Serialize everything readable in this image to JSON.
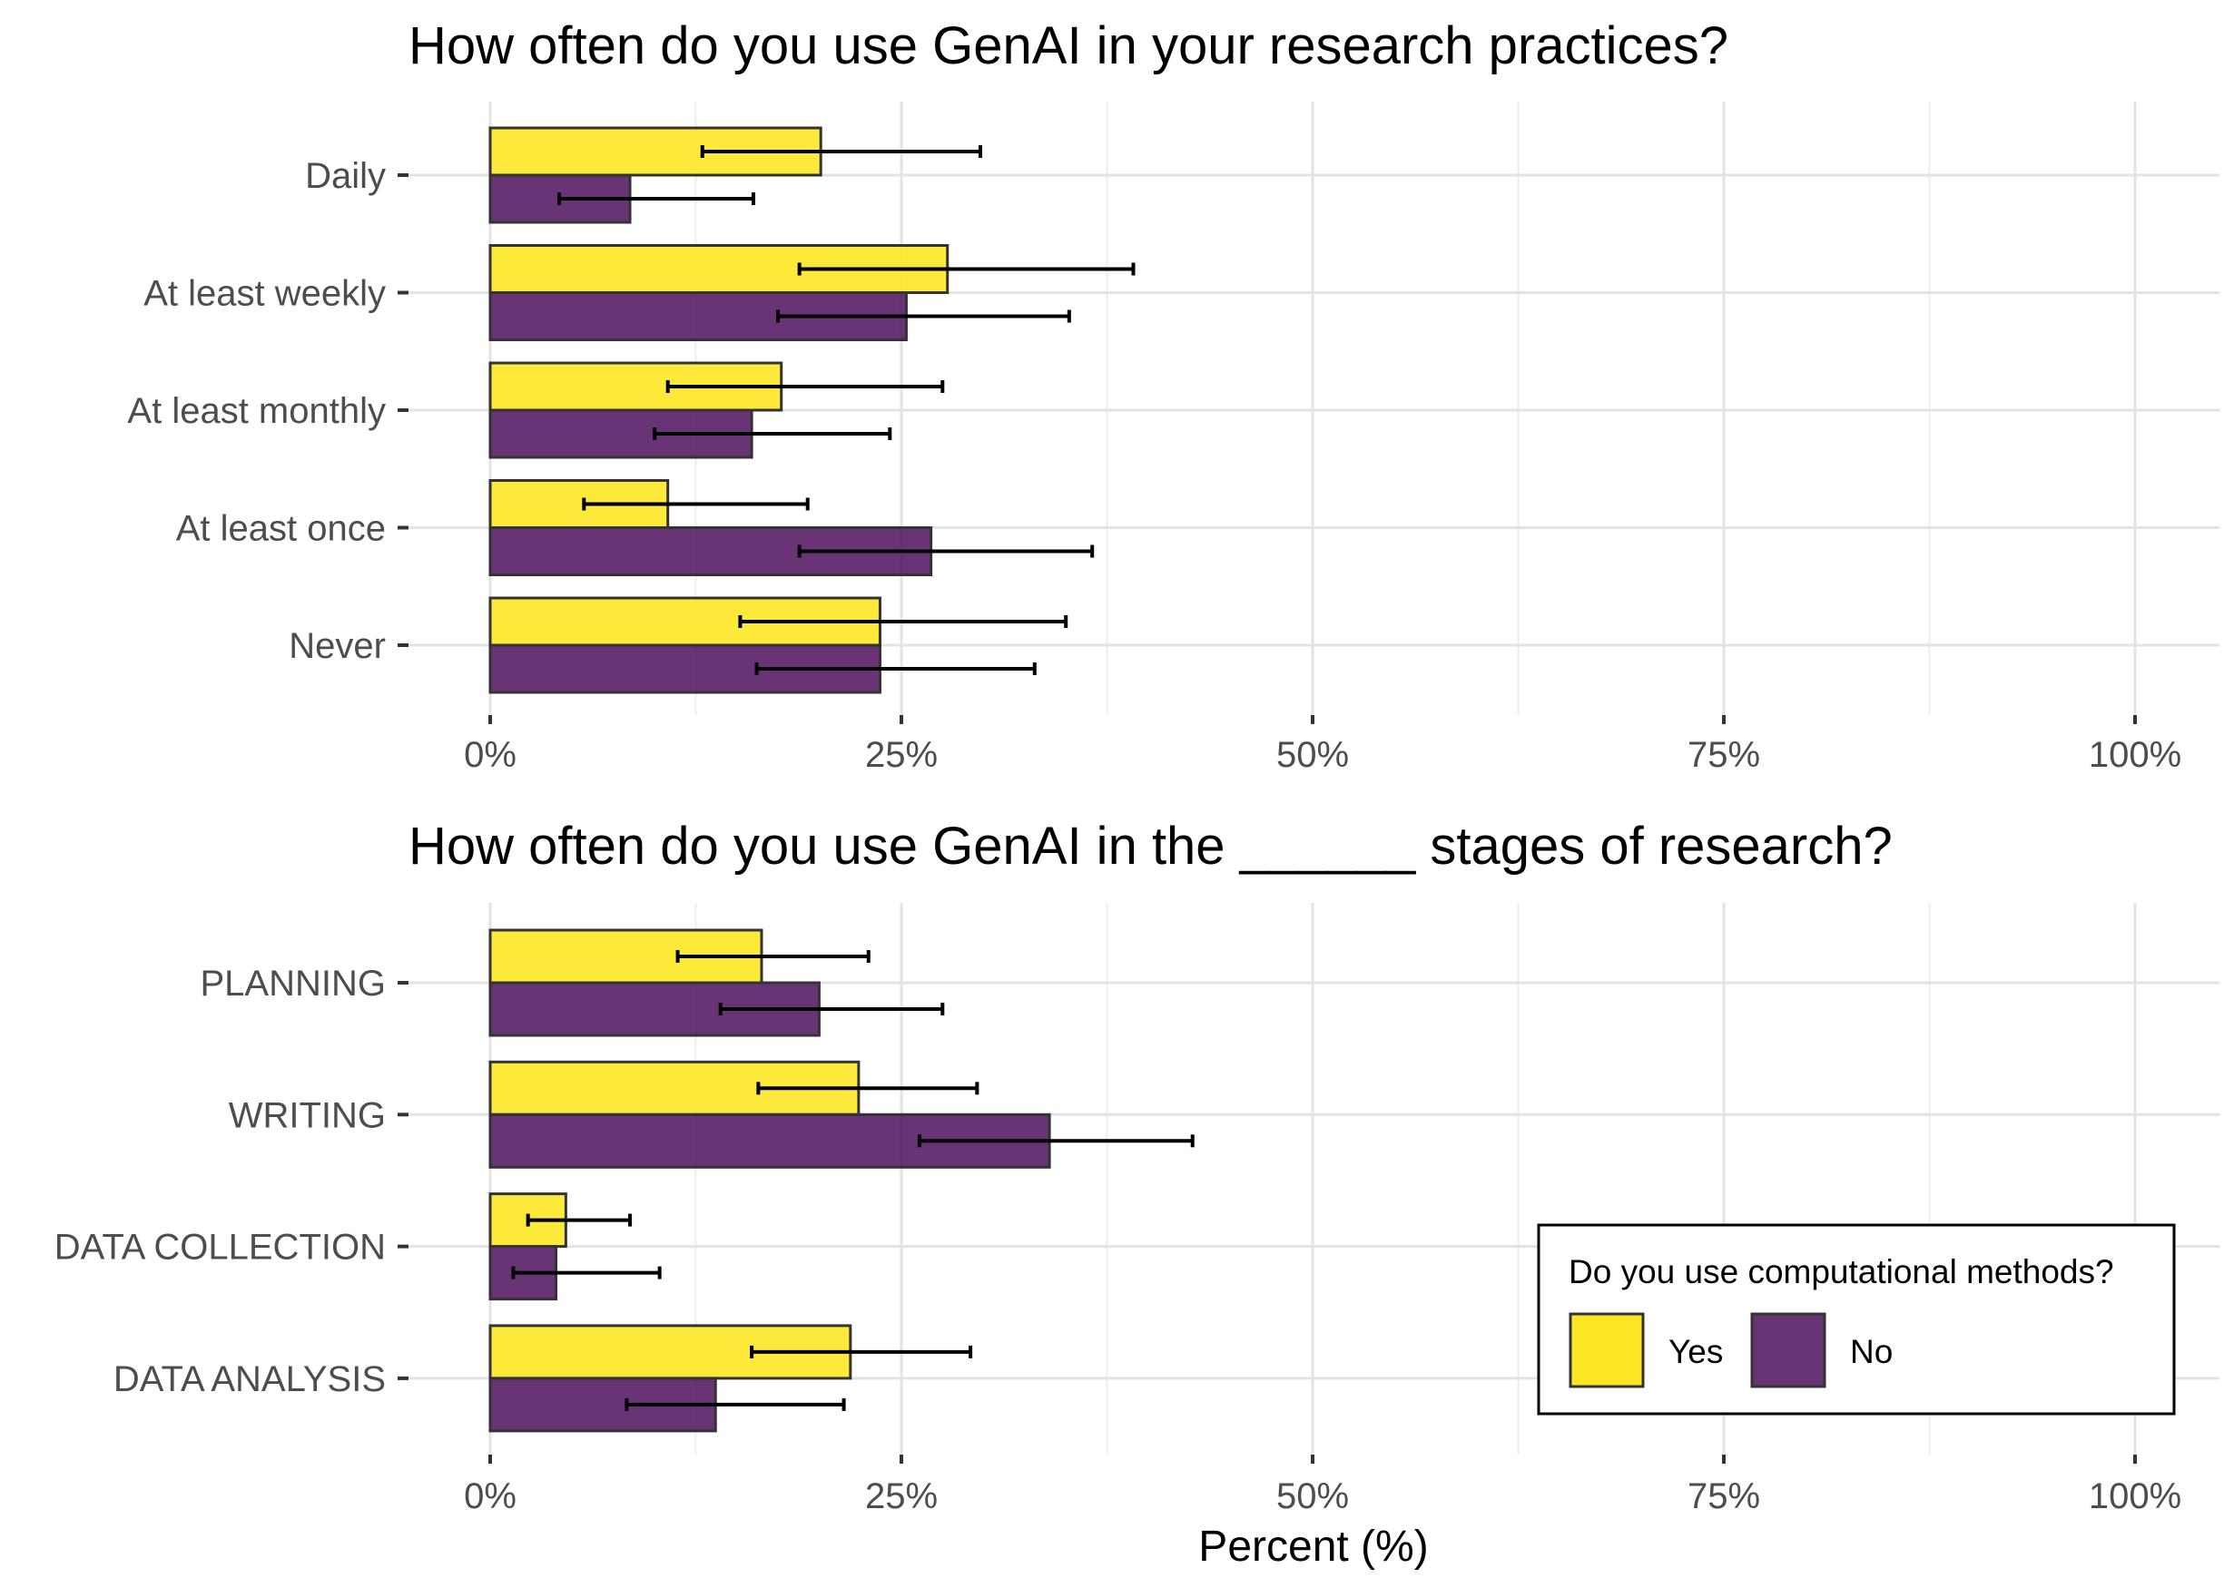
{
  "chart_data": [
    {
      "type": "bar",
      "orientation": "horizontal",
      "title": "How often do you use GenAI in your research practices?",
      "categories": [
        "Daily",
        "At least weekly",
        "At least monthly",
        "At least once",
        "Never"
      ],
      "series": [
        {
          "name": "Yes",
          "color": "#FDE725",
          "values": [
            20.1,
            27.8,
            17.7,
            10.8,
            23.7
          ],
          "err_low": [
            12.9,
            18.8,
            10.8,
            5.7,
            15.2
          ],
          "err_high": [
            29.8,
            39.1,
            27.5,
            19.3,
            35.0
          ]
        },
        {
          "name": "No",
          "color": "#440154",
          "values": [
            8.5,
            25.3,
            15.9,
            26.8,
            23.7
          ],
          "err_low": [
            4.2,
            17.5,
            10.0,
            18.8,
            16.2
          ],
          "err_high": [
            16.0,
            35.2,
            24.3,
            36.6,
            33.1
          ]
        }
      ],
      "xlim": [
        0,
        100
      ],
      "xticks": [
        "0%",
        "25%",
        "50%",
        "75%",
        "100%"
      ],
      "xlabel": "",
      "grid": true
    },
    {
      "type": "bar",
      "orientation": "horizontal",
      "title": "How often do you use GenAI in the ______ stages of research?",
      "categories": [
        "PLANNING",
        "WRITING",
        "DATA COLLECTION",
        "DATA ANALYSIS"
      ],
      "series": [
        {
          "name": "Yes",
          "color": "#FDE725",
          "values": [
            16.5,
            22.4,
            4.6,
            21.9
          ],
          "err_low": [
            11.4,
            16.3,
            2.3,
            15.9
          ],
          "err_high": [
            23.0,
            29.6,
            8.5,
            29.2
          ]
        },
        {
          "name": "No",
          "color": "#440154",
          "values": [
            20.0,
            34.0,
            4.0,
            13.7
          ],
          "err_low": [
            14.0,
            26.1,
            1.4,
            8.3
          ],
          "err_high": [
            27.5,
            42.7,
            10.3,
            21.5
          ]
        }
      ],
      "xlim": [
        0,
        100
      ],
      "xticks": [
        "0%",
        "25%",
        "50%",
        "75%",
        "100%"
      ],
      "xlabel": "Percent (%)",
      "grid": true,
      "legend": {
        "title": "Do you use computational methods?",
        "placement": "bottom-right",
        "entries": [
          "Yes",
          "No"
        ]
      }
    }
  ]
}
